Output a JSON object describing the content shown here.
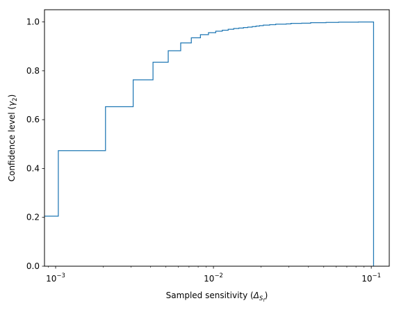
{
  "chart_data": {
    "type": "step",
    "title": "",
    "xlabel": {
      "text": "Sampled sensitivity (",
      "symbol": "Δ",
      "sub": "S",
      "subsub": "f",
      "close": ")"
    },
    "ylabel": {
      "text": "Confidence level (",
      "symbol": "γ",
      "sub": "2",
      "close": ")"
    },
    "x_scale": "log",
    "xlim": [
      0.00085,
      0.13
    ],
    "ylim": [
      0.0,
      1.05
    ],
    "x_ticks": [
      {
        "value": 0.001,
        "base": "10",
        "exp": "−3"
      },
      {
        "value": 0.01,
        "base": "10",
        "exp": "−2"
      },
      {
        "value": 0.1,
        "base": "10",
        "exp": "−1"
      }
    ],
    "y_ticks": [
      {
        "value": 0.0,
        "label": "0.0"
      },
      {
        "value": 0.2,
        "label": "0.2"
      },
      {
        "value": 0.4,
        "label": "0.4"
      },
      {
        "value": 0.6,
        "label": "0.6"
      },
      {
        "value": 0.8,
        "label": "0.8"
      },
      {
        "value": 1.0,
        "label": "1.0"
      }
    ],
    "grid": false,
    "color": "#1f77b4",
    "series": [
      {
        "x": [
          0.00085,
          0.00104,
          0.00207,
          0.0031,
          0.00414,
          0.00517,
          0.0062,
          0.00724,
          0.00827,
          0.0093,
          0.01034,
          0.01137,
          0.0124,
          0.01344,
          0.01447,
          0.0155,
          0.0165,
          0.0176,
          0.0186,
          0.0196,
          0.0207,
          0.0227,
          0.0248,
          0.0289,
          0.031,
          0.0362,
          0.0413,
          0.0517,
          0.062,
          0.0827,
          0.1034
        ],
        "y": [
          0.205,
          0.473,
          0.653,
          0.763,
          0.835,
          0.882,
          0.914,
          0.935,
          0.948,
          0.956,
          0.962,
          0.966,
          0.97,
          0.973,
          0.975,
          0.977,
          0.979,
          0.981,
          0.983,
          0.985,
          0.987,
          0.989,
          0.991,
          0.992,
          0.994,
          0.995,
          0.997,
          0.998,
          0.999,
          1.0,
          0.0
        ]
      }
    ]
  }
}
